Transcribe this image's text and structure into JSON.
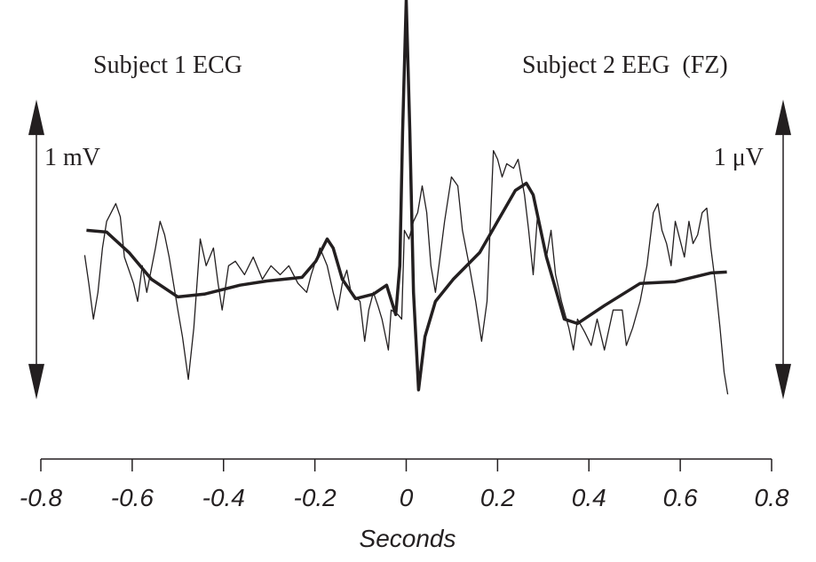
{
  "chart_data": {
    "type": "line",
    "annotations": [
      "Subject 1 ECG",
      "Subject 2 EEG  (FZ)"
    ],
    "xlabel": "Seconds",
    "xlim": [
      -0.8,
      0.8
    ],
    "xticks": [
      -0.8,
      -0.6,
      -0.4,
      -0.2,
      0,
      0.2,
      0.4,
      0.6,
      0.8
    ],
    "ylim": [
      -0.6,
      0.83
    ],
    "scale_bars": [
      {
        "label": "1 mV",
        "value": 1,
        "side": "left"
      },
      {
        "label": "1 μV",
        "value": 1,
        "side": "right"
      }
    ],
    "series": [
      {
        "name": "Subject 1 ECG",
        "color": "#231f20",
        "line_width": 3.5,
        "x": [
          -0.7,
          -0.656,
          -0.607,
          -0.558,
          -0.5,
          -0.442,
          -0.364,
          -0.305,
          -0.228,
          -0.198,
          -0.173,
          -0.16,
          -0.14,
          -0.111,
          -0.072,
          -0.043,
          -0.023,
          -0.014,
          -0.008,
          0,
          0.008,
          0.016,
          0.027,
          0.041,
          0.064,
          0.103,
          0.161,
          0.2,
          0.239,
          0.263,
          0.278,
          0.307,
          0.346,
          0.375,
          0.434,
          0.512,
          0.589,
          0.667,
          0.702
        ],
        "values": [
          0.062,
          0.056,
          -0.012,
          -0.101,
          -0.16,
          -0.151,
          -0.121,
          -0.107,
          -0.095,
          -0.041,
          0.033,
          0.003,
          -0.101,
          -0.166,
          -0.151,
          -0.121,
          -0.219,
          -0.056,
          0.388,
          0.83,
          0.388,
          -0.145,
          -0.47,
          -0.293,
          -0.175,
          -0.101,
          -0.012,
          0.092,
          0.195,
          0.219,
          0.18,
          -0.027,
          -0.234,
          -0.249,
          -0.189,
          -0.115,
          -0.109,
          -0.08,
          -0.077
        ]
      },
      {
        "name": "Subject 2 EEG  (FZ)",
        "color": "#231f20",
        "line_width": 1.3,
        "x": [
          -0.704,
          -0.695,
          -0.685,
          -0.675,
          -0.665,
          -0.656,
          -0.636,
          -0.626,
          -0.617,
          -0.597,
          -0.588,
          -0.578,
          -0.568,
          -0.549,
          -0.539,
          -0.529,
          -0.519,
          -0.5,
          -0.49,
          -0.477,
          -0.465,
          -0.451,
          -0.438,
          -0.422,
          -0.412,
          -0.403,
          -0.389,
          -0.374,
          -0.354,
          -0.335,
          -0.315,
          -0.296,
          -0.276,
          -0.257,
          -0.237,
          -0.218,
          -0.208,
          -0.189,
          -0.173,
          -0.16,
          -0.15,
          -0.14,
          -0.13,
          -0.121,
          -0.101,
          -0.091,
          -0.082,
          -0.072,
          -0.062,
          -0.053,
          -0.039,
          -0.033,
          -0.018,
          -0.01,
          -0.004,
          0.006,
          0.016,
          0.025,
          0.035,
          0.045,
          0.054,
          0.064,
          0.074,
          0.084,
          0.099,
          0.113,
          0.123,
          0.138,
          0.152,
          0.165,
          0.177,
          0.191,
          0.2,
          0.21,
          0.22,
          0.235,
          0.245,
          0.259,
          0.268,
          0.278,
          0.288,
          0.298,
          0.307,
          0.317,
          0.327,
          0.34,
          0.356,
          0.366,
          0.375,
          0.391,
          0.405,
          0.418,
          0.434,
          0.453,
          0.473,
          0.482,
          0.496,
          0.512,
          0.527,
          0.541,
          0.551,
          0.56,
          0.57,
          0.58,
          0.589,
          0.599,
          0.609,
          0.619,
          0.628,
          0.638,
          0.648,
          0.658,
          0.667,
          0.677,
          0.687,
          0.696,
          0.704
        ],
        "values": [
          -0.021,
          -0.115,
          -0.234,
          -0.145,
          0.003,
          0.092,
          0.151,
          0.107,
          -0.027,
          -0.115,
          -0.175,
          -0.056,
          -0.145,
          0.003,
          0.092,
          0.047,
          -0.027,
          -0.204,
          -0.293,
          -0.435,
          -0.263,
          0.033,
          -0.056,
          0.003,
          -0.115,
          -0.204,
          -0.056,
          -0.041,
          -0.086,
          -0.027,
          -0.101,
          -0.056,
          -0.086,
          -0.056,
          -0.115,
          -0.145,
          -0.086,
          0.003,
          -0.056,
          -0.145,
          -0.204,
          -0.115,
          -0.071,
          -0.145,
          -0.175,
          -0.308,
          -0.204,
          -0.145,
          -0.189,
          -0.234,
          -0.337,
          -0.204,
          -0.219,
          -0.234,
          0.062,
          0.033,
          0.092,
          0.121,
          0.21,
          0.121,
          -0.056,
          -0.145,
          -0.027,
          0.092,
          0.24,
          0.21,
          0.062,
          -0.056,
          -0.175,
          -0.308,
          -0.175,
          0.328,
          0.299,
          0.24,
          0.284,
          0.269,
          0.299,
          0.18,
          0.062,
          -0.086,
          0.121,
          0.047,
          -0.027,
          0.062,
          -0.086,
          -0.175,
          -0.263,
          -0.337,
          -0.234,
          -0.278,
          -0.322,
          -0.234,
          -0.337,
          -0.204,
          -0.204,
          -0.322,
          -0.263,
          -0.175,
          -0.056,
          0.121,
          0.151,
          0.062,
          0.018,
          -0.056,
          0.092,
          0.033,
          -0.027,
          0.092,
          0.018,
          0.047,
          0.121,
          0.136,
          0.003,
          -0.115,
          -0.263,
          -0.411,
          -0.485
        ]
      }
    ]
  }
}
